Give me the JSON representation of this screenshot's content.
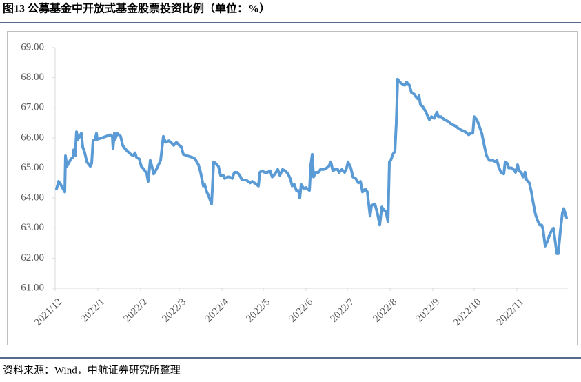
{
  "chart_data": {
    "type": "line",
    "title": "图13 公募基金中开放式基金股票投资比例（单位：%）",
    "source": "资料来源：Wind，中航证券研究所整理",
    "color": "#5b9bd5",
    "xlim": [
      0,
      372
    ],
    "xticks": [
      {
        "value": 0,
        "label": "2021/12"
      },
      {
        "value": 31,
        "label": "2022/1"
      },
      {
        "value": 62,
        "label": "2022/2"
      },
      {
        "value": 90,
        "label": "2022/3"
      },
      {
        "value": 121,
        "label": "2022/4"
      },
      {
        "value": 151,
        "label": "2022/5"
      },
      {
        "value": 182,
        "label": "2022/6"
      },
      {
        "value": 212,
        "label": "2022/7"
      },
      {
        "value": 243,
        "label": "2022/8"
      },
      {
        "value": 274,
        "label": "2022/9"
      },
      {
        "value": 304,
        "label": "2022/10"
      },
      {
        "value": 335,
        "label": "2022/11"
      }
    ],
    "ylim": [
      61,
      69
    ],
    "yticks": [
      {
        "value": 61,
        "label": "61.00"
      },
      {
        "value": 62,
        "label": "62.00"
      },
      {
        "value": 63,
        "label": "63.00"
      },
      {
        "value": 64,
        "label": "64.00"
      },
      {
        "value": 65,
        "label": "65.00"
      },
      {
        "value": 66,
        "label": "66.00"
      },
      {
        "value": 67,
        "label": "67.00"
      },
      {
        "value": 68,
        "label": "68.00"
      },
      {
        "value": 69,
        "label": "69.00"
      }
    ],
    "x": [
      1,
      2.5,
      4,
      7,
      7.5,
      8.5,
      11.5,
      13,
      13.5,
      14.5,
      15.5,
      16.5,
      19,
      20,
      21.5,
      23,
      25.5,
      26.5,
      27.5,
      29,
      30,
      30.5,
      34,
      40,
      41.5,
      42,
      43,
      43.5,
      45,
      47.5,
      49,
      50.5,
      52.5,
      55,
      56.5,
      58,
      59,
      61,
      62.5,
      64.5,
      66.5,
      67.5,
      69,
      70.5,
      71.5,
      74,
      76.5,
      78.5,
      80,
      82.5,
      84,
      86,
      88,
      90,
      91.5,
      93,
      96,
      99.5,
      101.5,
      104,
      105.5,
      107.5,
      108.5,
      110,
      111.5,
      113.5,
      115,
      116.5,
      118.5,
      120,
      122,
      123,
      125,
      126.5,
      128.5,
      130,
      132,
      134,
      135.5,
      138.5,
      140,
      141.5,
      143,
      144.5,
      146,
      147.5,
      148.5,
      150,
      152,
      154,
      156,
      157.5,
      159.5,
      161.5,
      163,
      165,
      167,
      169,
      170.5,
      172,
      173.5,
      175,
      176.5,
      177.5,
      178.5,
      180.5,
      182,
      183,
      184.5,
      185.5,
      186.5,
      187.5,
      189,
      191,
      192.5,
      195,
      197,
      198.5,
      200,
      201.5,
      203,
      205,
      206,
      208,
      210,
      211.5,
      212.5,
      214.5,
      216,
      218,
      220,
      221.5,
      223,
      225,
      226.5,
      228.5,
      229.5,
      232,
      234,
      235.5,
      237,
      238.5,
      240,
      241.5,
      242.5,
      243.5,
      245,
      246.5,
      247.5,
      248.5,
      250,
      251.5,
      253.5,
      255,
      257,
      258.5,
      260.5,
      262,
      263,
      264,
      265,
      266.5,
      268.5,
      270,
      271.5,
      273,
      275,
      277,
      278,
      280,
      282.5,
      285,
      287.5,
      290,
      293,
      295,
      297.5,
      300,
      301.5,
      303,
      304,
      306,
      308,
      309.5,
      311.5,
      313,
      315,
      317.5,
      319.5,
      320.5,
      322,
      323.5,
      325.5,
      326.5,
      328,
      329,
      331,
      332.5,
      334,
      335.5,
      336.5,
      338,
      339.5,
      341,
      342,
      344,
      345.5,
      347,
      348.5,
      350,
      351.5,
      353,
      354,
      355.5,
      357,
      358.5,
      360,
      361.5,
      362.5,
      364,
      365,
      366.5,
      368,
      369,
      371
    ],
    "values": [
      64.3,
      64.55,
      64.45,
      64.2,
      65.4,
      65.05,
      65.3,
      65.35,
      65.6,
      65.4,
      66.2,
      65.95,
      66.15,
      65.7,
      65.5,
      65.2,
      65.05,
      65.15,
      65.9,
      65.95,
      66.15,
      65.95,
      66.0,
      66.1,
      66.05,
      65.65,
      66.15,
      65.95,
      66.15,
      66.05,
      65.75,
      65.65,
      65.55,
      65.45,
      65.4,
      65.5,
      65.35,
      65.3,
      65.05,
      64.95,
      64.8,
      64.55,
      65.25,
      65.0,
      64.8,
      65.0,
      65.25,
      66.05,
      65.85,
      65.9,
      65.85,
      65.75,
      65.85,
      65.75,
      65.7,
      65.45,
      65.4,
      65.35,
      65.3,
      65.1,
      64.85,
      64.4,
      64.45,
      64.2,
      64.05,
      63.8,
      65.2,
      65.15,
      65.05,
      64.75,
      64.75,
      64.65,
      64.7,
      64.7,
      64.65,
      64.85,
      64.85,
      64.75,
      64.6,
      64.6,
      64.55,
      64.5,
      64.55,
      64.5,
      64.45,
      64.4,
      64.85,
      64.9,
      64.85,
      64.85,
      64.9,
      64.7,
      64.8,
      64.95,
      64.75,
      64.95,
      64.9,
      64.8,
      64.65,
      64.4,
      64.45,
      64.25,
      64.25,
      64.0,
      64.45,
      64.3,
      64.35,
      64.3,
      64.25,
      65.1,
      65.45,
      64.7,
      64.85,
      64.85,
      64.95,
      64.95,
      65.0,
      65.05,
      65.2,
      64.9,
      64.95,
      64.95,
      64.85,
      64.95,
      64.85,
      65.0,
      65.2,
      65.0,
      64.7,
      64.65,
      64.5,
      64.55,
      64.2,
      64.3,
      64.2,
      63.4,
      63.75,
      63.8,
      63.45,
      63.1,
      63.7,
      63.6,
      63.55,
      63.2,
      65.2,
      65.25,
      65.45,
      65.55,
      66.5,
      67.95,
      67.85,
      67.8,
      67.75,
      67.85,
      67.75,
      67.5,
      67.45,
      67.35,
      67.3,
      67.4,
      67.1,
      67.05,
      66.9,
      66.75,
      66.6,
      66.7,
      66.65,
      66.85,
      66.7,
      66.7,
      66.6,
      66.55,
      66.45,
      66.4,
      66.3,
      66.25,
      66.2,
      66.1,
      66.15,
      66.15,
      66.7,
      66.6,
      66.35,
      66.15,
      65.7,
      65.4,
      65.25,
      65.25,
      65.2,
      65.25,
      65.0,
      64.85,
      64.8,
      65.2,
      65.15,
      65.0,
      65.0,
      64.95,
      64.85,
      65.1,
      64.9,
      64.85,
      64.7,
      64.85,
      64.6,
      64.5,
      64.2,
      63.8,
      63.45,
      63.25,
      63.1,
      63.1,
      62.95,
      62.4,
      62.55,
      62.75,
      62.9,
      63.0,
      62.65,
      62.15,
      62.15,
      62.9,
      63.5,
      63.65,
      63.35
    ]
  }
}
